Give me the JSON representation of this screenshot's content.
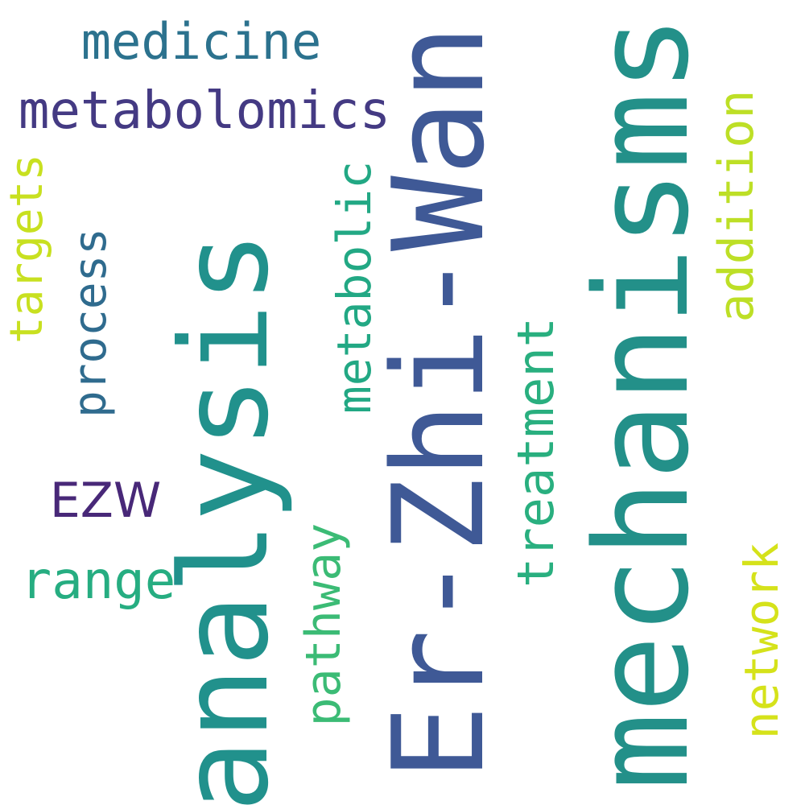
{
  "words": [
    {
      "text": "Er-Zhi-Wan",
      "color": "#3f5996"
    },
    {
      "text": "mechanisms",
      "color": "#239089"
    },
    {
      "text": "analysis",
      "color": "#21918c"
    },
    {
      "text": "metabolomics",
      "color": "#443a83"
    },
    {
      "text": "medicine",
      "color": "#2c728e"
    },
    {
      "text": "metabolic",
      "color": "#22a884"
    },
    {
      "text": "addition",
      "color": "#bddf26"
    },
    {
      "text": "treatment",
      "color": "#29af7f"
    },
    {
      "text": "targets",
      "color": "#c8e020"
    },
    {
      "text": "process",
      "color": "#2f6b8e"
    },
    {
      "text": "EZW",
      "color": "#482878"
    },
    {
      "text": "range",
      "color": "#26ad81"
    },
    {
      "text": "pathway",
      "color": "#3bbb75"
    },
    {
      "text": "network",
      "color": "#d5e21a"
    }
  ]
}
